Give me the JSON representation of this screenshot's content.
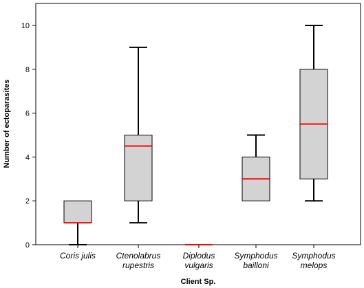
{
  "chart_data": {
    "type": "boxplot",
    "xlabel": "Client Sp.",
    "ylabel": "Number of ectoparasites",
    "ylim": [
      0,
      11
    ],
    "yticks": [
      0,
      2,
      4,
      6,
      8,
      10
    ],
    "grid": false,
    "colors": {
      "box_fill": "#d3d3d3",
      "median": "#ff0000",
      "outline": "#000000"
    },
    "categories": [
      {
        "label_lines": [
          "Coris julis"
        ],
        "min": 0,
        "q1": 1,
        "median": 1,
        "q3": 2,
        "max": 2
      },
      {
        "label_lines": [
          "Ctenolabrus",
          "rupestris"
        ],
        "min": 1,
        "q1": 2,
        "median": 4.5,
        "q3": 5,
        "max": 9
      },
      {
        "label_lines": [
          "Diplodus",
          "vulgaris"
        ],
        "min": 0,
        "q1": 0,
        "median": 0,
        "q3": 0,
        "max": 0
      },
      {
        "label_lines": [
          "Symphodus",
          "bailloni"
        ],
        "min": 2,
        "q1": 2,
        "median": 3,
        "q3": 4,
        "max": 5
      },
      {
        "label_lines": [
          "Symphodus",
          "melops"
        ],
        "min": 2,
        "q1": 3,
        "median": 5.5,
        "q3": 8,
        "max": 10
      }
    ]
  }
}
